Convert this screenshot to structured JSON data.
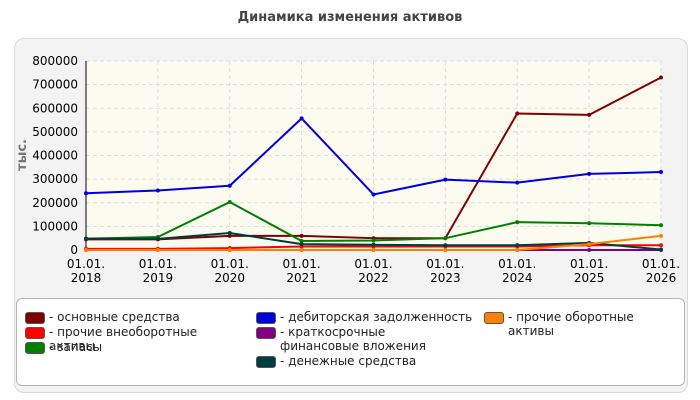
{
  "chart_data": {
    "type": "line",
    "title": "Динамика изменения активов",
    "ylabel": "тыс.",
    "xlabel": "",
    "ylim": [
      0,
      800000
    ],
    "yticks": [
      "0",
      "100000",
      "200000",
      "300000",
      "400000",
      "500000",
      "600000",
      "700000",
      "800000"
    ],
    "ytick_values": [
      0,
      100000,
      200000,
      300000,
      400000,
      500000,
      600000,
      700000,
      800000
    ],
    "categories": [
      "01.01.\n2018",
      "01.01.\n2019",
      "01.01.\n2020",
      "01.01.\n2021",
      "01.01.\n2022",
      "01.01.\n2023",
      "01.01.\n2024",
      "01.01.\n2025",
      "01.01.\n2026"
    ],
    "grid": true,
    "legend_position": "bottom",
    "series": [
      {
        "name": "- основные средства",
        "color": "#7f0000",
        "values": [
          45000,
          45000,
          60000,
          60000,
          50000,
          50000,
          578000,
          572000,
          730000
        ]
      },
      {
        "name": "- прочие внеоборотные активы",
        "color": "#ff0000",
        "values": [
          5000,
          5000,
          8000,
          15000,
          15000,
          15000,
          15000,
          20000,
          20000
        ]
      },
      {
        "name": "- запасы",
        "color": "#008000",
        "values": [
          48000,
          55000,
          203000,
          38000,
          40000,
          50000,
          118000,
          113000,
          105000
        ]
      },
      {
        "name": "- дебиторская задолженность",
        "color": "#0000dd",
        "values": [
          240000,
          252000,
          272000,
          557000,
          235000,
          298000,
          285000,
          322000,
          330000
        ]
      },
      {
        "name": "- краткосрочные финансовые вложения",
        "color": "#800080",
        "values": [
          0,
          0,
          0,
          0,
          0,
          0,
          0,
          0,
          0
        ]
      },
      {
        "name": "- денежные средства",
        "color": "#003d3d",
        "values": [
          48000,
          47000,
          72000,
          25000,
          22000,
          20000,
          20000,
          30000,
          2000
        ]
      },
      {
        "name": "- прочие оборотные активы",
        "color": "#ff8000",
        "values": [
          0,
          0,
          0,
          0,
          0,
          0,
          0,
          25000,
          60000
        ]
      }
    ]
  }
}
